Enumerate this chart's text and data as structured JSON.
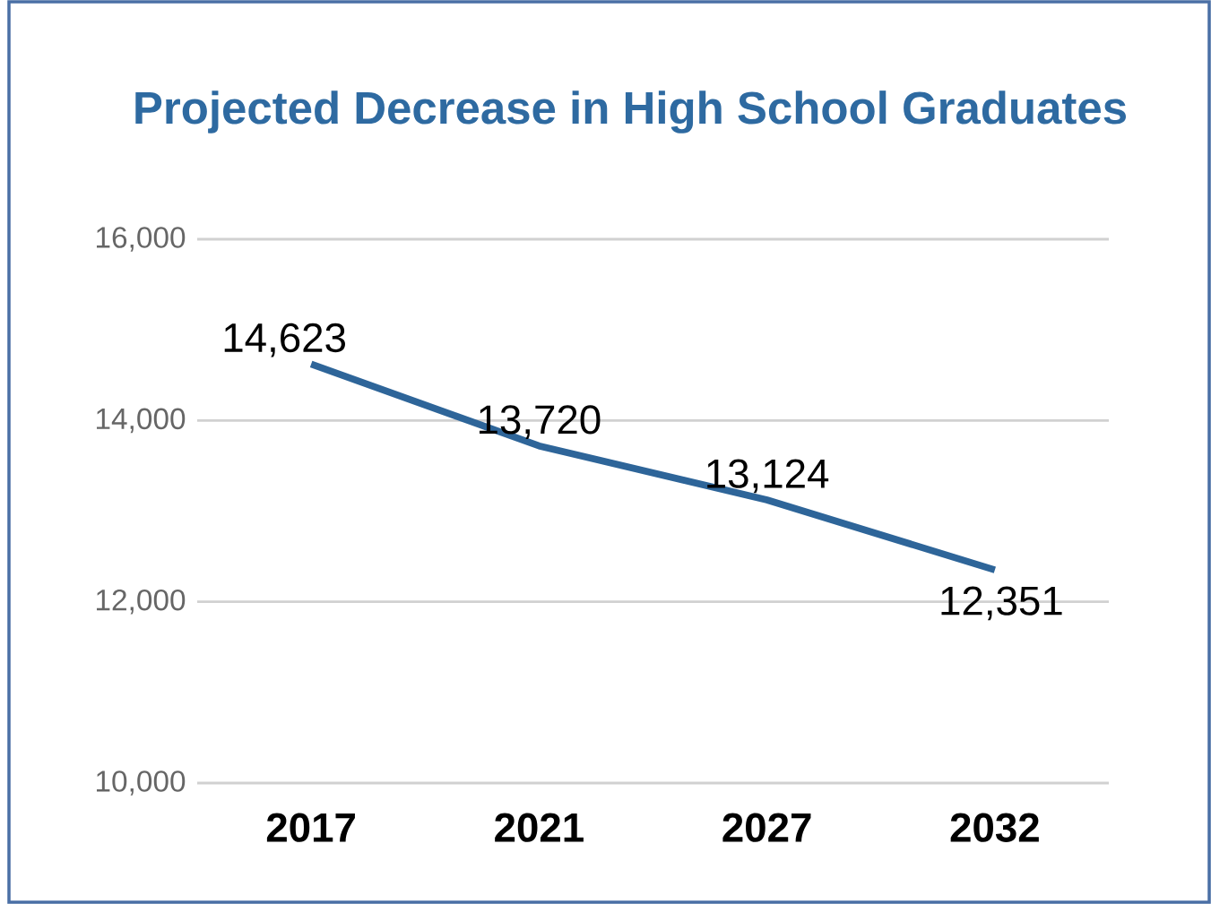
{
  "chart_data": {
    "type": "line",
    "title": "Projected Decrease in High School Graduates",
    "categories": [
      "2017",
      "2021",
      "2027",
      "2032"
    ],
    "series": [
      {
        "color": "#2e6599",
        "values": [
          14623,
          13720,
          13124,
          12351
        ],
        "value_labels": [
          "14,623",
          "13,720",
          "13,124",
          "12,351"
        ]
      }
    ],
    "ylim": [
      10000,
      16000
    ],
    "yticks": [
      {
        "value": 10000,
        "label": "10,000"
      },
      {
        "value": 12000,
        "label": "12,000"
      },
      {
        "value": 14000,
        "label": "14,000"
      },
      {
        "value": 16000,
        "label": "16,000"
      }
    ],
    "grid": "y",
    "marker": "none",
    "line_style": "solid"
  }
}
